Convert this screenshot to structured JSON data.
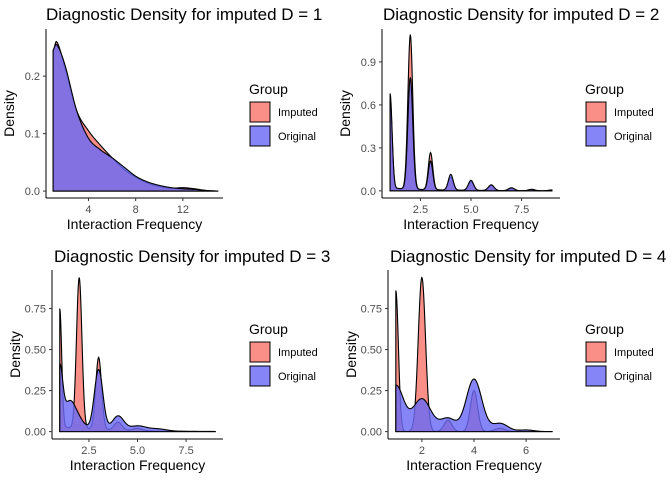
{
  "colors": {
    "imputed": "#F8766D",
    "original": "#6A6AF5",
    "overlap": "#7B3FC9",
    "outline": "#000000"
  },
  "chart_data": [
    {
      "type": "area",
      "title": "Diagnostic Density for imputed D = 1",
      "xlabel": "Interaction Frequency",
      "ylabel": "Density",
      "xlim": [
        0.4,
        15.4
      ],
      "ylim": [
        -0.012,
        0.282
      ],
      "xticks": [
        4,
        8,
        12
      ],
      "xtick_labels": [
        "4",
        "8",
        "12"
      ],
      "yticks": [
        0,
        0.1,
        0.2
      ],
      "ytick_labels": [
        "0.0",
        "0.1",
        "0.2"
      ],
      "legend": {
        "title": "Group",
        "position": "right"
      },
      "series": [
        {
          "name": "Imputed",
          "x": [
            1,
            1.3,
            2,
            3,
            4,
            5,
            6,
            7,
            8,
            9,
            10,
            11,
            12,
            13,
            14,
            15
          ],
          "values": [
            0.24,
            0.26,
            0.215,
            0.14,
            0.105,
            0.08,
            0.058,
            0.038,
            0.024,
            0.014,
            0.008,
            0.005,
            0.006,
            0.004,
            0.001,
            0
          ]
        },
        {
          "name": "Original",
          "x": [
            1,
            1.3,
            2,
            3,
            4,
            5,
            6,
            7,
            8,
            9,
            10,
            11,
            12,
            13,
            14,
            15
          ],
          "values": [
            0.245,
            0.255,
            0.22,
            0.14,
            0.092,
            0.072,
            0.058,
            0.042,
            0.026,
            0.016,
            0.01,
            0.006,
            0.004,
            0.003,
            0.001,
            0
          ]
        }
      ]
    },
    {
      "type": "area",
      "title": "Diagnostic Density for imputed D = 2",
      "xlabel": "Interaction Frequency",
      "ylabel": "Density",
      "xlim": [
        0.6,
        9.4
      ],
      "ylim": [
        -0.05,
        1.13
      ],
      "xticks": [
        2.5,
        5,
        7.5
      ],
      "xtick_labels": [
        "2.5",
        "5.0",
        "7.5"
      ],
      "yticks": [
        0,
        0.3,
        0.6,
        0.9
      ],
      "ytick_labels": [
        "0.0",
        "0.3",
        "0.6",
        "0.9"
      ],
      "legend": {
        "title": "Group",
        "position": "right"
      },
      "series": [
        {
          "name": "Imputed",
          "peaks": [
            [
              1,
              0.62,
              0.1
            ],
            [
              2,
              1.08,
              0.12
            ],
            [
              3,
              0.26,
              0.11
            ],
            [
              4,
              0.09,
              0.12
            ],
            [
              5,
              0.06,
              0.13
            ],
            [
              6,
              0.035,
              0.14
            ],
            [
              7,
              0.015,
              0.15
            ],
            [
              8,
              0.008,
              0.15
            ],
            [
              9,
              0.004,
              0.15
            ]
          ],
          "tail": [
            0.018,
            0.0,
            0.0
          ]
        },
        {
          "name": "Original",
          "peaks": [
            [
              1,
              0.66,
              0.1
            ],
            [
              2,
              0.78,
              0.12
            ],
            [
              3,
              0.2,
              0.11
            ],
            [
              4,
              0.11,
              0.12
            ],
            [
              5,
              0.07,
              0.13
            ],
            [
              6,
              0.04,
              0.14
            ],
            [
              7,
              0.02,
              0.15
            ],
            [
              8,
              0.01,
              0.15
            ],
            [
              9,
              0.006,
              0.15
            ]
          ],
          "tail": [
            0.02,
            0.0,
            0.0
          ]
        }
      ]
    },
    {
      "type": "area",
      "title": "Diagnostic Density for imputed D = 3",
      "xlabel": "Interaction Frequency",
      "ylabel": "Density",
      "xlim": [
        0.6,
        9.4
      ],
      "ylim": [
        -0.045,
        0.985
      ],
      "xticks": [
        2.5,
        5,
        7.5
      ],
      "xtick_labels": [
        "2.5",
        "5.0",
        "7.5"
      ],
      "yticks": [
        0,
        0.25,
        0.5,
        0.75
      ],
      "ytick_labels": [
        "0.00",
        "0.25",
        "0.50",
        "0.75"
      ],
      "legend": {
        "title": "Group",
        "position": "right"
      },
      "series": [
        {
          "name": "Imputed",
          "peaks": [
            [
              1,
              0.72,
              0.1
            ],
            [
              2,
              0.92,
              0.14
            ],
            [
              3,
              0.44,
              0.15
            ],
            [
              4,
              0.05,
              0.2
            ],
            [
              5,
              0.015,
              0.25
            ]
          ],
          "tail": [
            0.03,
            0.0,
            0.0
          ]
        },
        {
          "name": "Original",
          "peaks": [
            [
              1,
              0.35,
              0.15
            ],
            [
              1.5,
              0.16,
              0.3
            ],
            [
              2,
              0.05,
              0.3
            ],
            [
              3,
              0.37,
              0.22
            ],
            [
              4,
              0.09,
              0.3
            ],
            [
              5,
              0.03,
              0.4
            ],
            [
              6,
              0.015,
              0.5
            ]
          ],
          "tail": [
            0.02,
            0.0,
            0.0
          ]
        }
      ]
    },
    {
      "type": "area",
      "title": "Diagnostic Density for imputed D = 4",
      "xlabel": "Interaction Frequency",
      "ylabel": "Density",
      "xlim": [
        0.7,
        7.3
      ],
      "ylim": [
        -0.045,
        0.985
      ],
      "xticks": [
        2,
        4,
        6
      ],
      "xtick_labels": [
        "2",
        "4",
        "6"
      ],
      "yticks": [
        0,
        0.25,
        0.5,
        0.75
      ],
      "ytick_labels": [
        "0.00",
        "0.25",
        "0.50",
        "0.75"
      ],
      "legend": {
        "title": "Group",
        "position": "right"
      },
      "series": [
        {
          "name": "Imputed",
          "peaks": [
            [
              1,
              0.86,
              0.1
            ],
            [
              2,
              0.94,
              0.14
            ],
            [
              3,
              0.07,
              0.15
            ],
            [
              4,
              0.25,
              0.14
            ],
            [
              5,
              0.02,
              0.2
            ]
          ],
          "tail": [
            0.0,
            0.0,
            0.0
          ]
        },
        {
          "name": "Original",
          "peaks": [
            [
              1,
              0.28,
              0.3
            ],
            [
              2,
              0.2,
              0.35
            ],
            [
              3,
              0.08,
              0.3
            ],
            [
              4,
              0.32,
              0.3
            ],
            [
              5,
              0.05,
              0.3
            ],
            [
              6,
              0.01,
              0.3
            ]
          ],
          "tail": [
            0.0,
            0.0,
            0.0
          ]
        }
      ]
    }
  ]
}
